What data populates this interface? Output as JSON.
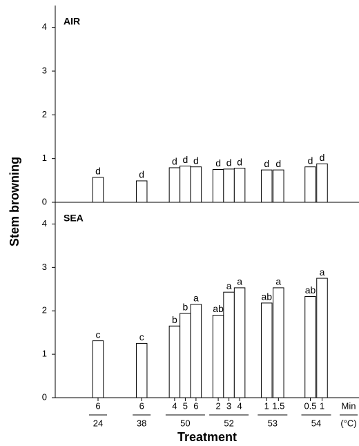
{
  "chart_data": [
    {
      "type": "bar",
      "title": "AIR",
      "ylabel": "Stem browning",
      "values": [
        0.57,
        0.49,
        0.79,
        0.83,
        0.81,
        0.75,
        0.76,
        0.78,
        0.74,
        0.74,
        0.81,
        0.88
      ],
      "letters": [
        "d",
        "d",
        "d",
        "d",
        "d",
        "d",
        "d",
        "d",
        "d",
        "d",
        "d",
        "d"
      ],
      "color": "#ffffff",
      "ylim": [
        0,
        4.5
      ],
      "yticks": [
        0,
        1,
        2,
        3,
        4
      ]
    },
    {
      "type": "bar",
      "title": "SEA",
      "xlabel": "Treatment",
      "x_unit_top": "Min",
      "x_unit_bottom": "(°C)",
      "groups": [
        {
          "label": "24",
          "categories": [
            "6"
          ]
        },
        {
          "label": "38",
          "categories": [
            "6"
          ]
        },
        {
          "label": "50",
          "categories": [
            "4",
            "5",
            "6"
          ]
        },
        {
          "label": "52",
          "categories": [
            "2",
            "3",
            "4"
          ]
        },
        {
          "label": "53",
          "categories": [
            "1",
            "1.5"
          ]
        },
        {
          "label": "54",
          "categories": [
            "0.5",
            "1"
          ]
        }
      ],
      "values": [
        1.31,
        1.25,
        1.65,
        1.94,
        2.15,
        1.9,
        2.43,
        2.53,
        2.18,
        2.53,
        2.33,
        2.75
      ],
      "letters": [
        "c",
        "c",
        "b",
        "b",
        "a",
        "ab",
        "a",
        "a",
        "ab",
        "a",
        "ab",
        "a"
      ],
      "color": "#ffffff",
      "ylim": [
        0,
        4.5
      ],
      "yticks": [
        0,
        1,
        2,
        3,
        4
      ]
    }
  ]
}
